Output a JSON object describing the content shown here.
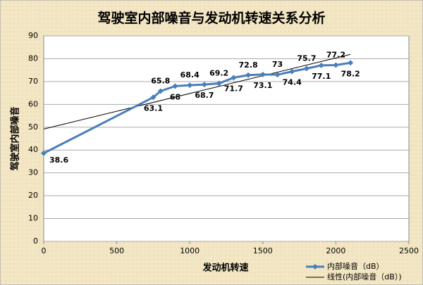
{
  "chart_data": {
    "type": "line",
    "title": "驾驶室内部噪音与发动机转速关系分析",
    "x_label": "发动机转速",
    "y_label": "驾驶室内部噪音",
    "x": [
      0,
      750,
      800,
      900,
      1000,
      1100,
      1200,
      1300,
      1400,
      1500,
      1600,
      1700,
      1800,
      1900,
      2000,
      2100
    ],
    "series": [
      {
        "name": "内部噪音（dB）",
        "color": "#4a7ebb",
        "values": [
          38.6,
          63.1,
          65.8,
          68,
          68.4,
          68.7,
          69.2,
          71.7,
          72.8,
          73.1,
          73,
          74.4,
          75.7,
          77.1,
          77.2,
          78.2
        ]
      }
    ],
    "trendline": {
      "name": "线性(内部噪音（dB）)",
      "color": "#000000",
      "x": [
        0,
        2100
      ],
      "values": [
        49.2,
        81.9
      ]
    },
    "xlim": [
      0,
      2500
    ],
    "xticks": [
      0,
      500,
      1000,
      1500,
      2000,
      2500
    ],
    "ylim": [
      0,
      90
    ],
    "yticks": [
      0,
      10,
      20,
      30,
      40,
      50,
      60,
      70,
      80,
      90
    ],
    "grid": true,
    "legend": "bottom-right"
  }
}
